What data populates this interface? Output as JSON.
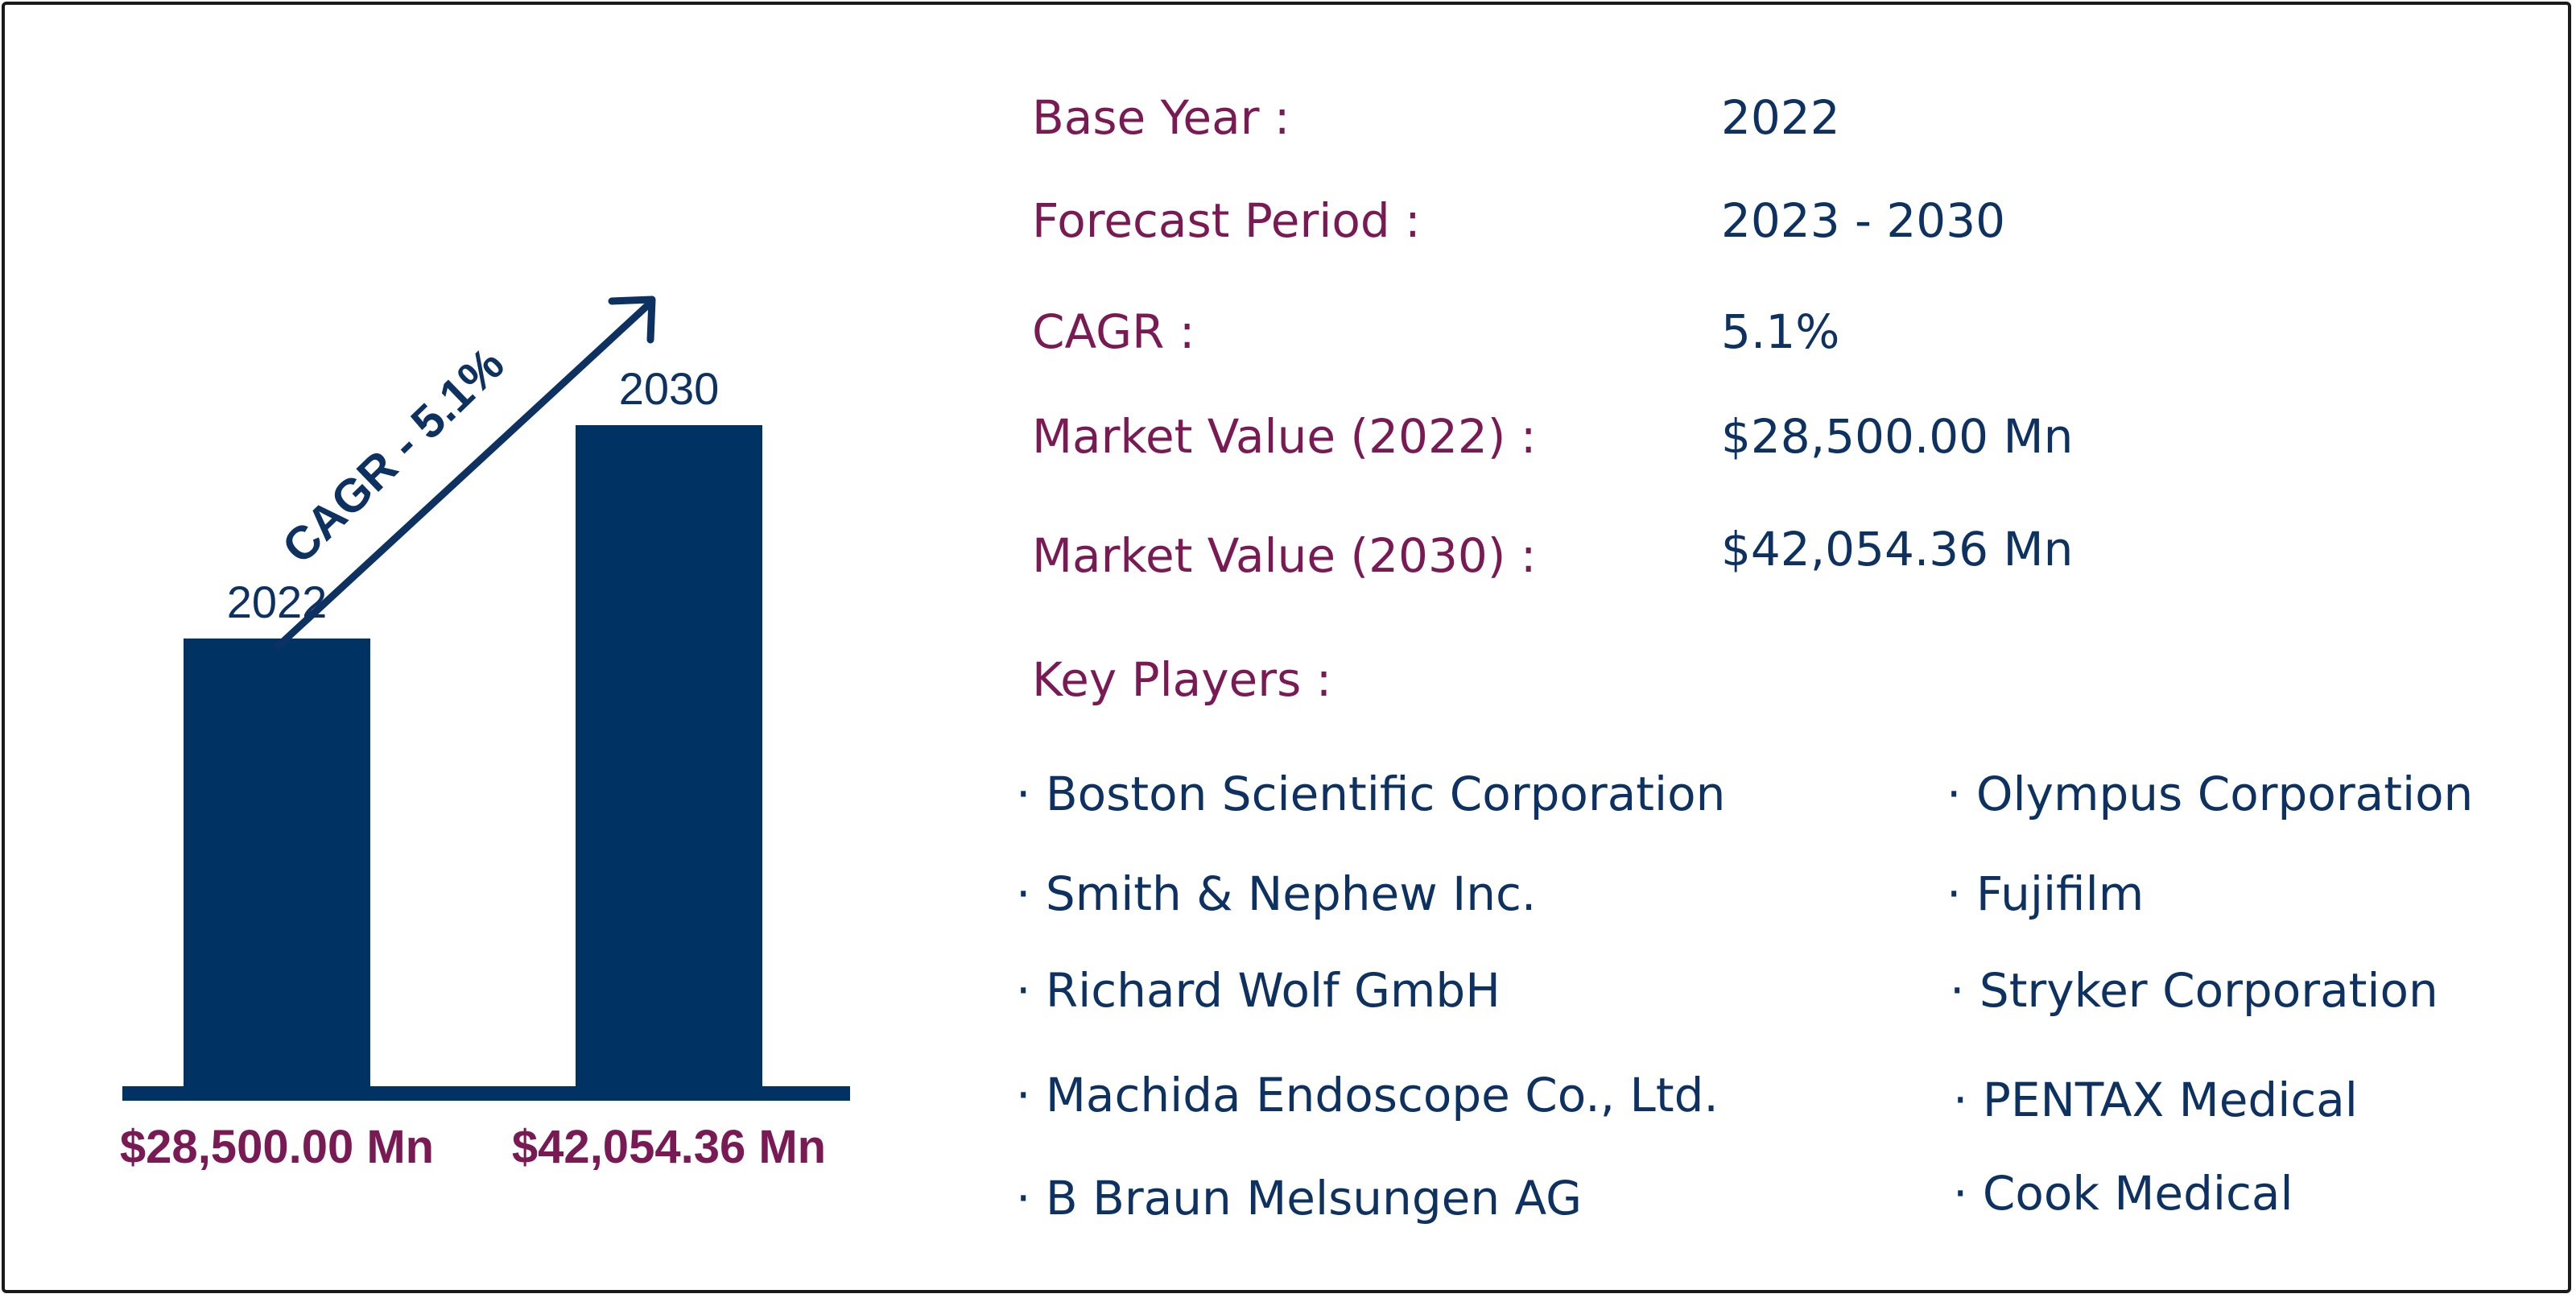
{
  "colors": {
    "bar": "#003263",
    "label": "#7a1a55",
    "value": "#0d3261",
    "border": "#1a1a1a"
  },
  "chart_data": {
    "type": "bar",
    "categories": [
      "2022",
      "2030"
    ],
    "values": [
      28500.0,
      42054.36
    ],
    "value_labels": [
      "$28,500.00 Mn",
      "$42,054.36 Mn"
    ],
    "annotation": "CAGR - 5.1%",
    "ylim": [
      0,
      42054.36
    ],
    "grid": false
  },
  "summary": {
    "rows": [
      {
        "label": "Base Year :",
        "value": "2022"
      },
      {
        "label": "Forecast Period :",
        "value": "2023 - 2030"
      },
      {
        "label": "CAGR :",
        "value": "5.1%"
      },
      {
        "label": "Market Value (2022) :",
        "value": "$28,500.00 Mn"
      },
      {
        "label": "Market Value (2030) :",
        "value": "$42,054.36 Mn"
      }
    ],
    "players_label": "Key Players :",
    "players_left": [
      "Boston Scientific Corporation",
      "Smith & Nephew Inc.",
      "Richard Wolf GmbH",
      "Machida Endoscope Co., Ltd.",
      "B Braun Melsungen AG"
    ],
    "players_right": [
      "Olympus Corporation",
      "Fujifilm",
      "Stryker Corporation",
      "PENTAX Medical",
      "Cook Medical"
    ]
  }
}
